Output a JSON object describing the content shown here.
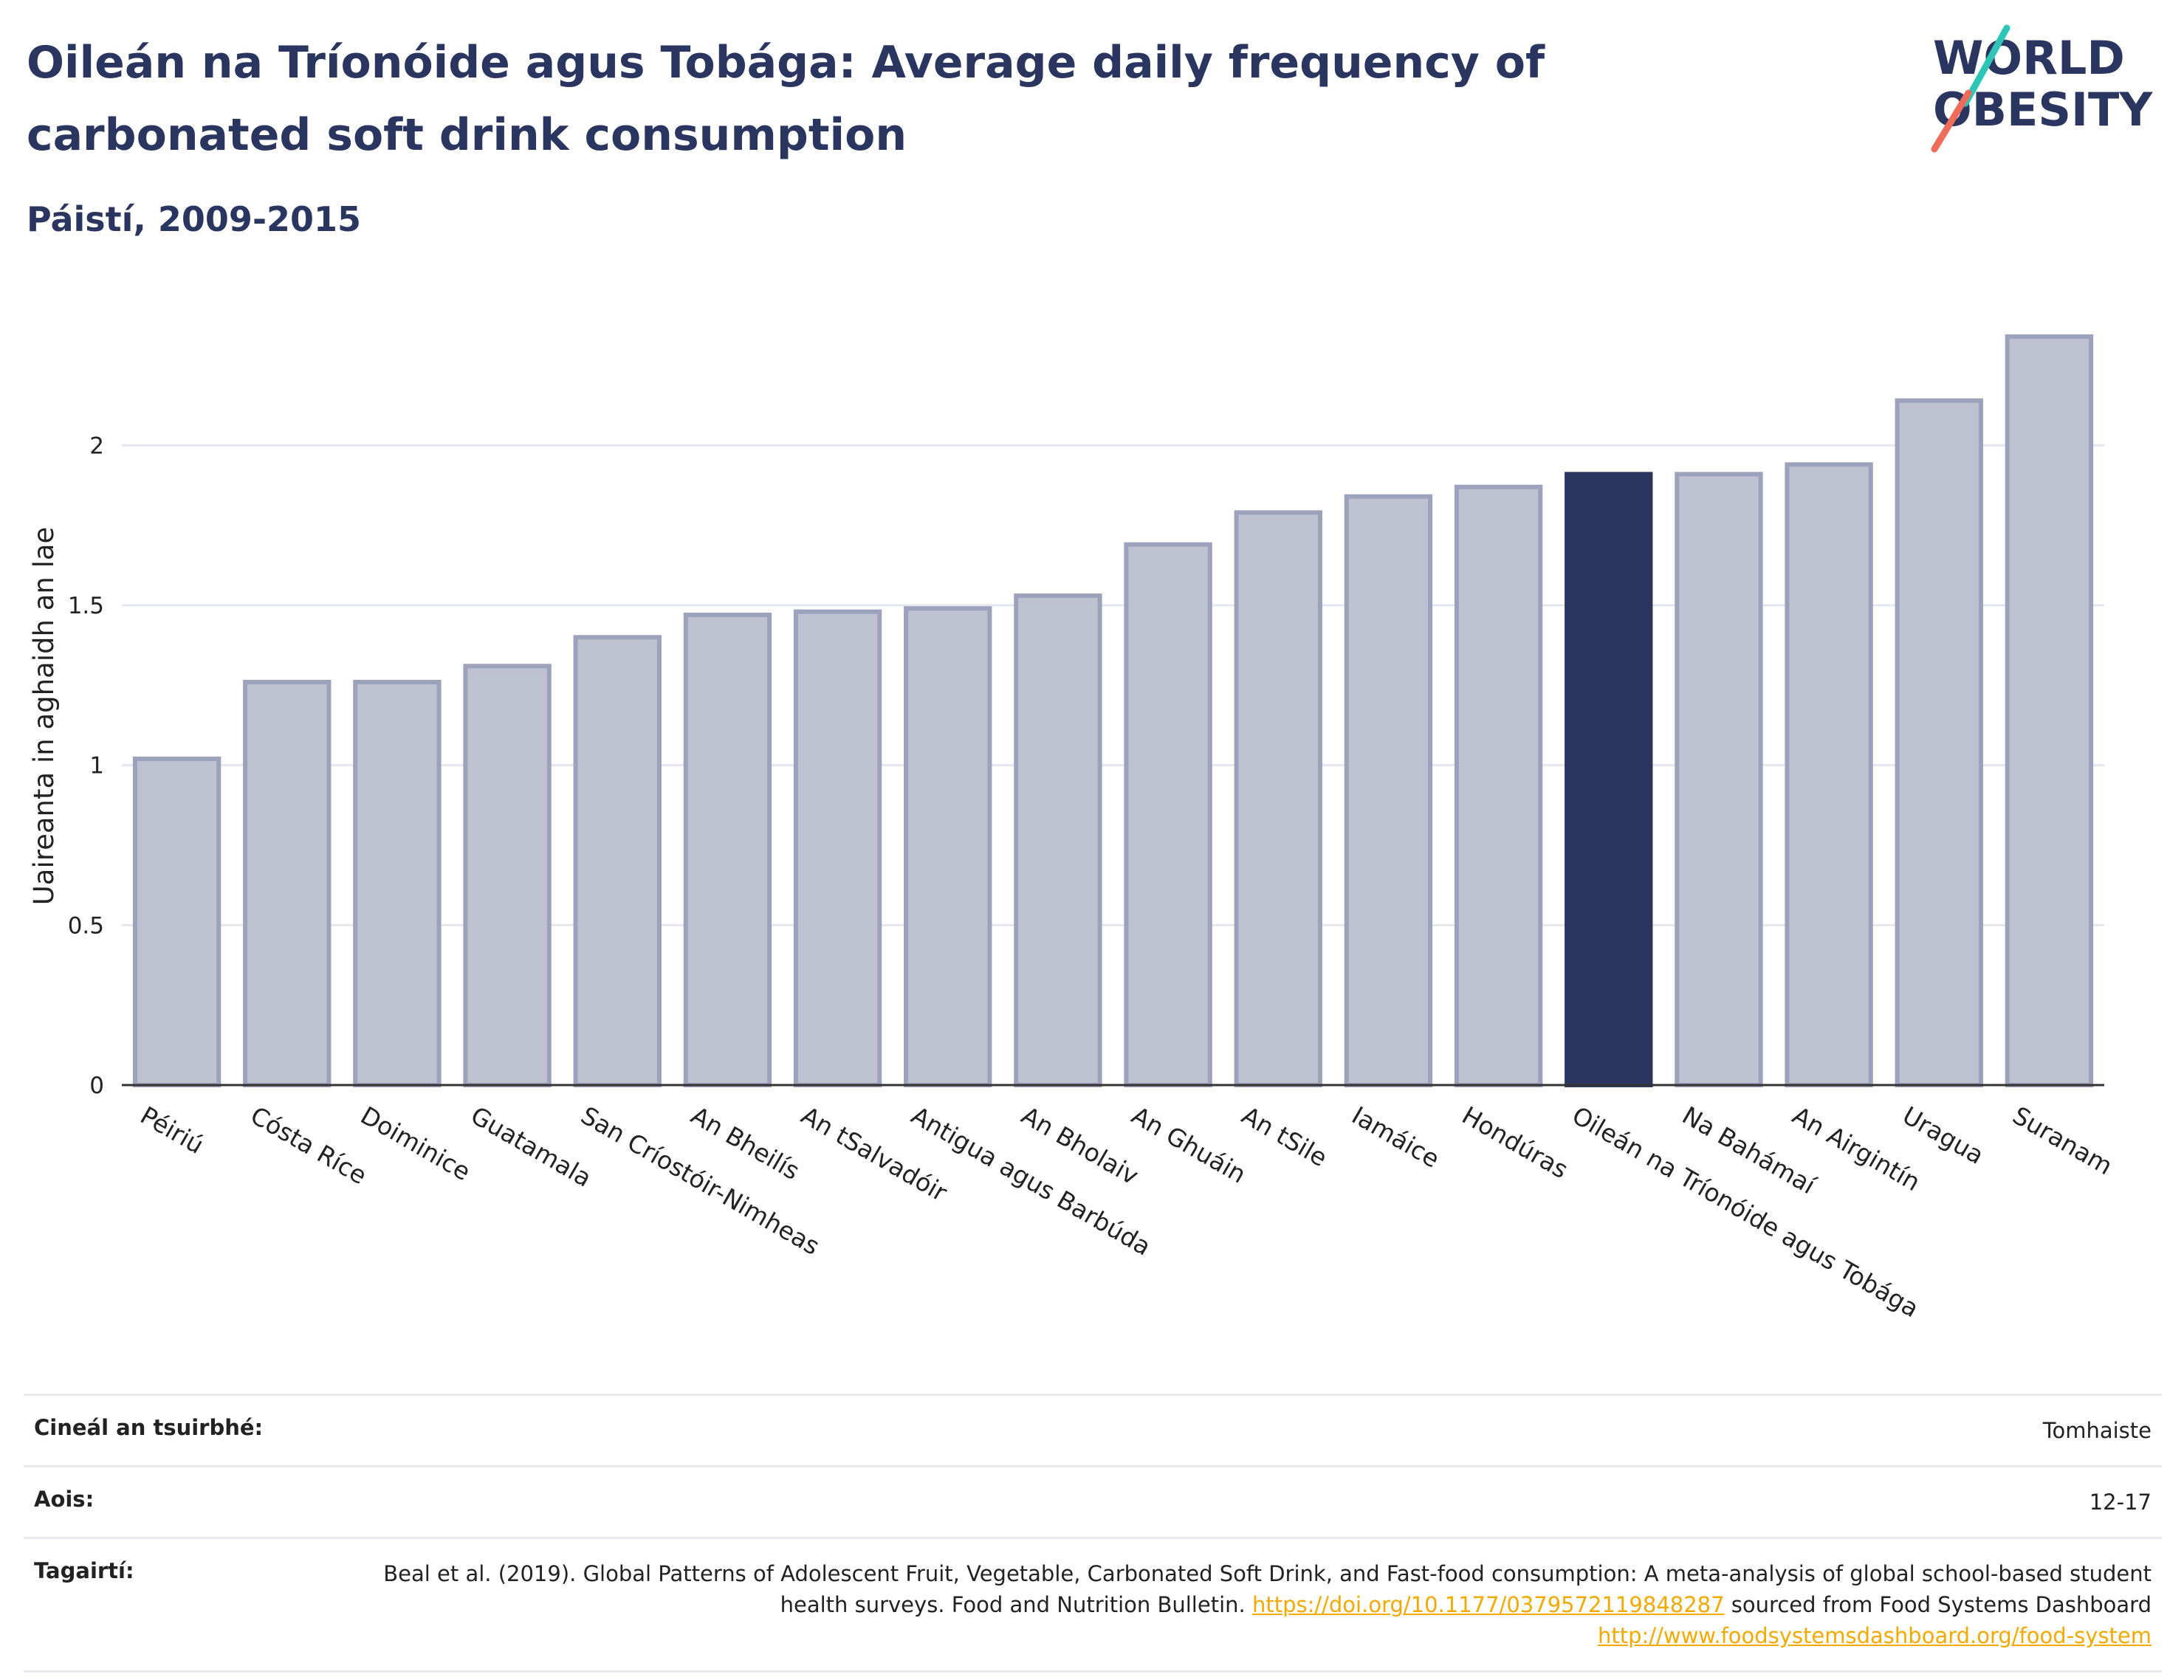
{
  "header": {
    "title": "Oileán na Tríonóide agus Tobága: Average daily frequency of carbonated soft drink consumption",
    "subtitle": "Páistí, 2009-2015",
    "logo_text_line1": "WORLD",
    "logo_text_line2": "OBESITY"
  },
  "chart_data": {
    "type": "bar",
    "title": "Oileán na Tríonóide agus Tobága: Average daily frequency of carbonated soft drink consumption",
    "subtitle": "Páistí, 2009-2015",
    "ylabel": "Uaireanta in aghaidh an lae",
    "xlabel": "",
    "ylim": [
      0,
      2.4
    ],
    "yticks": [
      0,
      0.5,
      1,
      1.5,
      2
    ],
    "ytick_labels": [
      "0",
      "0.5",
      "1",
      "1.5",
      "2"
    ],
    "grid": true,
    "highlight_category": "Oileán na Tríonóide agus Tobága",
    "colors": {
      "bar": "#bec2d0",
      "bar_border": "#9ca2bb",
      "highlight": "#2b3660",
      "grid": "#e6e7ee",
      "axis": "#333333"
    },
    "categories": [
      "Péiriú",
      "Cósta Ríce",
      "Doiminice",
      "Guatamala",
      "San Críostóir-Nimheas",
      "An Bheilís",
      "An tSalvadóir",
      "Antigua agus Barbúda",
      "An Bholaiv",
      "An Ghuáin",
      "An tSile",
      "Iamáice",
      "Hondúras",
      "Oileán na Tríonóide agus Tobága",
      "Na Bahámaí",
      "An Airgintín",
      "Uragua",
      "Suranam"
    ],
    "values": [
      1.02,
      1.26,
      1.26,
      1.31,
      1.4,
      1.47,
      1.48,
      1.49,
      1.53,
      1.69,
      1.79,
      1.84,
      1.87,
      1.91,
      1.91,
      1.94,
      2.14,
      2.34
    ]
  },
  "footer": {
    "rows": [
      {
        "label": "Cineál an tsuirbhé:",
        "value": "Tomhaiste"
      },
      {
        "label": "Aois:",
        "value": "12-17"
      },
      {
        "label": "Tagairtí:",
        "value_part1": "Beal et al. (2019). Global Patterns of Adolescent Fruit, Vegetable, Carbonated Soft Drink, and Fast-food consumption: A meta-analysis of global school-based student health surveys. Food and Nutrition Bulletin. ",
        "link1": "https://doi.org/10.1177/0379572119848287",
        "value_part2": " sourced from Food Systems Dashboard ",
        "link2": "http://www.foodsystemsdashboard.org/food-system"
      }
    ]
  }
}
